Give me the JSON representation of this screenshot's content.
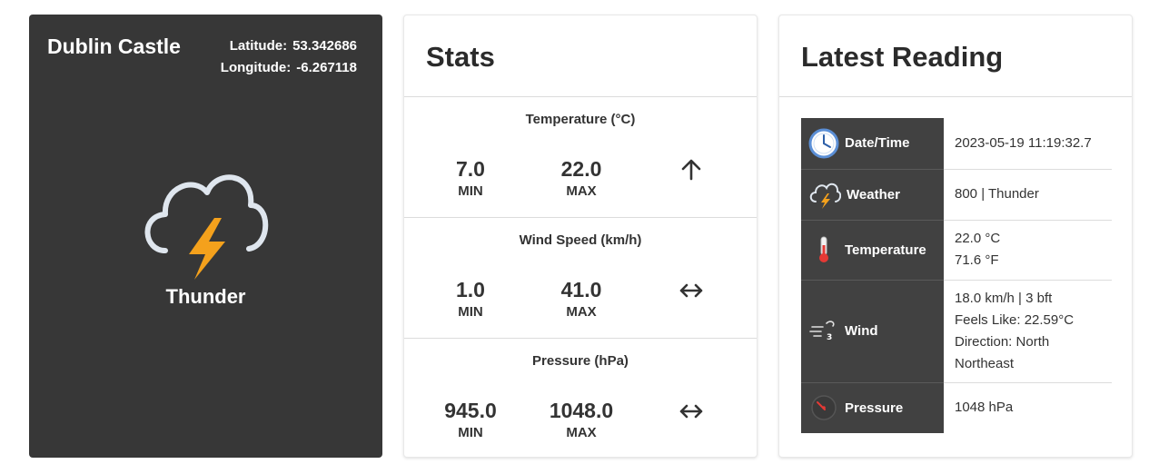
{
  "location": {
    "name": "Dublin Castle",
    "latitude_label": "Latitude:",
    "latitude": "53.342686",
    "longitude_label": "Longitude:",
    "longitude": "-6.267118",
    "weather": "Thunder",
    "weather_icon": "thunderstorm-icon"
  },
  "stats": {
    "title": "Stats",
    "sections": [
      {
        "title": "Temperature (°C)",
        "min": "7.0",
        "max": "22.0",
        "min_label": "MIN",
        "max_label": "MAX",
        "trend": "up-arrow-icon"
      },
      {
        "title": "Wind Speed (km/h)",
        "min": "1.0",
        "max": "41.0",
        "min_label": "MIN",
        "max_label": "MAX",
        "trend": "left-right-arrow-icon"
      },
      {
        "title": "Pressure (hPa)",
        "min": "945.0",
        "max": "1048.0",
        "min_label": "MIN",
        "max_label": "MAX",
        "trend": "left-right-arrow-icon"
      }
    ]
  },
  "latest": {
    "title": "Latest Reading",
    "rows": [
      {
        "label": "Date/Time",
        "icon": "clock-icon",
        "lines": [
          "2023-05-19 11:19:32.7"
        ]
      },
      {
        "label": "Weather",
        "icon": "thunderstorm-icon",
        "lines": [
          "800 | Thunder"
        ]
      },
      {
        "label": "Temperature",
        "icon": "thermometer-icon",
        "lines": [
          "22.0 °C",
          "71.6 °F"
        ]
      },
      {
        "label": "Wind",
        "icon": "wind-icon",
        "icon_text": "3",
        "lines": [
          "18.0 km/h | 3 bft",
          "Feels Like: 22.59°C",
          "Direction: North",
          "Northeast"
        ]
      },
      {
        "label": "Pressure",
        "icon": "gauge-icon",
        "lines": [
          "1048 hPa"
        ]
      }
    ]
  },
  "colors": {
    "dark_card": "#373737",
    "label_cell": "#414141",
    "bolt": "#f4a11c",
    "cloud_outline": "#dfe6ee",
    "thermometer": "#e53935",
    "clock": "#5b8fd6"
  }
}
